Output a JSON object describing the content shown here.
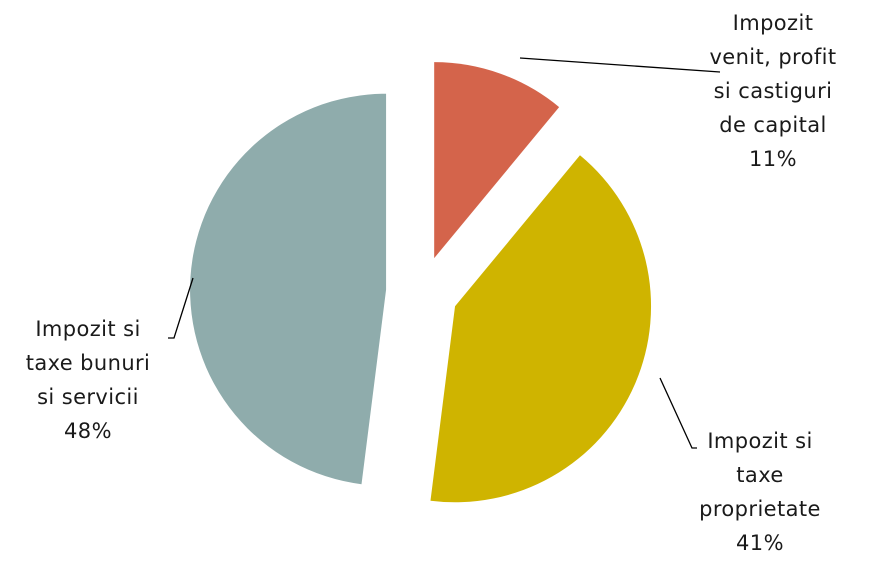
{
  "chart_data": {
    "type": "pie",
    "exploded": true,
    "slices": [
      {
        "name": "Impozit venit, profit si castiguri de capital",
        "label_lines": [
          "Impozit",
          "venit, profit",
          "si castiguri",
          "de capital",
          "11%"
        ],
        "value": 11,
        "color": "#D4644B"
      },
      {
        "name": "Impozit si taxe proprietate",
        "label_lines": [
          "Impozit si",
          "taxe",
          "proprietate",
          "41%"
        ],
        "value": 41,
        "color": "#CFB400"
      },
      {
        "name": "Impozit si taxe bunuri si servicii",
        "label_lines": [
          "Impozit si",
          "taxe bunuri",
          "si servicii",
          "48%"
        ],
        "value": 48,
        "color": "#8FACAC"
      }
    ]
  }
}
